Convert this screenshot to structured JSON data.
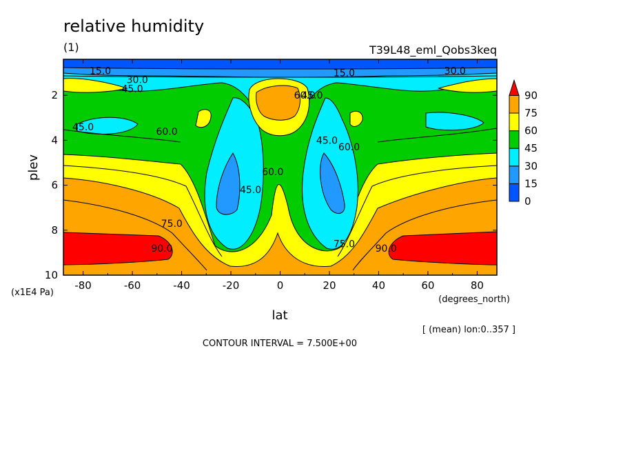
{
  "chart_data": {
    "type": "heatmap",
    "title": "relative humidity",
    "subtitle": "(1)",
    "run_label": "T39L48_eml_Qobs3keq",
    "xlabel": "lat",
    "x_units": "(degrees_north)",
    "ylabel": "plev",
    "y_units": "(x1E4 Pa)",
    "xlim": [
      -88,
      88
    ],
    "ylim": [
      10,
      0.4
    ],
    "x_ticks": [
      -80,
      -60,
      -40,
      -20,
      0,
      20,
      40,
      60,
      80
    ],
    "y_ticks": [
      2,
      4,
      6,
      8,
      10
    ],
    "footer_note": "[ (mean) lon:0..357 ]",
    "contour_note": "CONTOUR INTERVAL = 7.500E+00",
    "colorbar": {
      "levels": [
        0,
        15,
        30,
        45,
        60,
        75,
        90
      ],
      "colors": [
        "#0055ff",
        "#2299ff",
        "#00eeff",
        "#00cc00",
        "#ffff00",
        "#ffa500",
        "#ff0000"
      ]
    },
    "contour_labels": [
      {
        "text": "15.0",
        "lat": -73,
        "plev": 0.9
      },
      {
        "text": "15.0",
        "lat": 26,
        "plev": 1.0
      },
      {
        "text": "30.0",
        "lat": -58,
        "plev": 1.3
      },
      {
        "text": "45.0",
        "lat": -60,
        "plev": 1.7
      },
      {
        "text": "30.0",
        "lat": 71,
        "plev": 0.9
      },
      {
        "text": "45.0",
        "lat": -80,
        "plev": 3.4
      },
      {
        "text": "60.0",
        "lat": -46,
        "plev": 3.6
      },
      {
        "text": "60.0",
        "lat": 10,
        "plev": 2.0
      },
      {
        "text": "45.0",
        "lat": 13,
        "plev": 2.0
      },
      {
        "text": "45.0",
        "lat": 19,
        "plev": 4.0
      },
      {
        "text": "60.0",
        "lat": 28,
        "plev": 4.3
      },
      {
        "text": "60.0",
        "lat": -3,
        "plev": 5.4
      },
      {
        "text": "45.0",
        "lat": -12,
        "plev": 6.2
      },
      {
        "text": "75.0",
        "lat": -44,
        "plev": 7.7
      },
      {
        "text": "90.0",
        "lat": -48,
        "plev": 8.8
      },
      {
        "text": "75.0",
        "lat": 26,
        "plev": 8.6
      },
      {
        "text": "90.0",
        "lat": 43,
        "plev": 8.8
      }
    ]
  }
}
